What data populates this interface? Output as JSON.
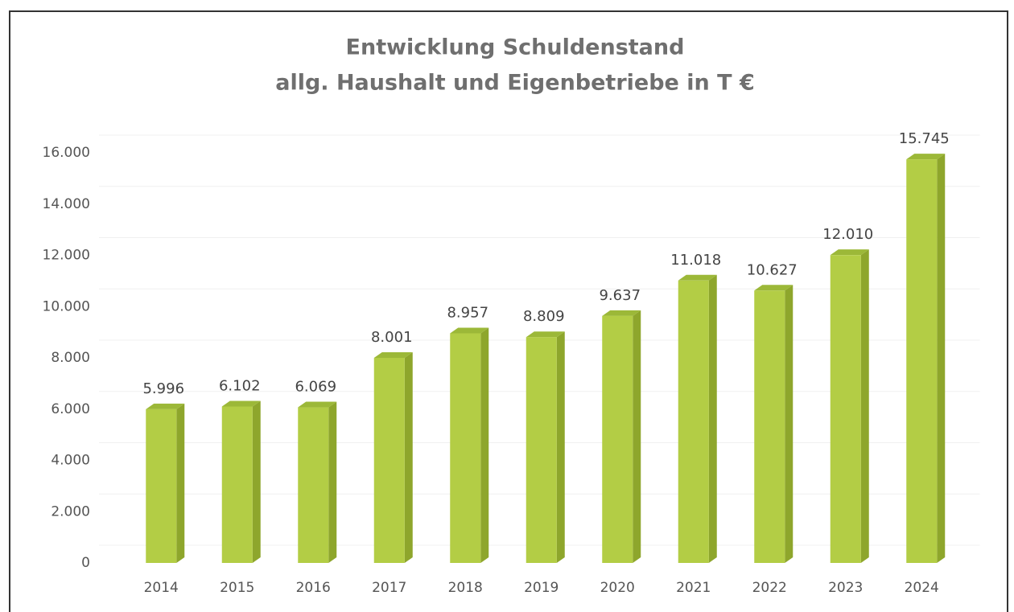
{
  "chart_data": {
    "type": "bar3d",
    "title": [
      "Entwicklung Schuldenstand",
      "allg. Haushalt und Eigenbetriebe in T €"
    ],
    "categories": [
      "2014",
      "2015",
      "2016",
      "2017",
      "2018",
      "2019",
      "2020",
      "2021",
      "2022",
      "2023",
      "2024"
    ],
    "values": [
      5996,
      6102,
      6069,
      8001,
      8957,
      8809,
      9637,
      11018,
      10627,
      12010,
      15745
    ],
    "value_labels": [
      "5.996",
      "6.102",
      "6.069",
      "8.001",
      "8.957",
      "8.809",
      "9.637",
      "11.018",
      "10.627",
      "12.010",
      "15.745"
    ],
    "color": "#b3cd45",
    "ylim": [
      0,
      16000
    ],
    "yticks": [
      0,
      {
        "value": 2000,
        "label": "2.000"
      },
      {
        "value": 4000,
        "label": "4.000"
      },
      {
        "value": 6000,
        "label": "6.000"
      },
      {
        "value": 8000,
        "label": "8.000"
      },
      {
        "value": 10000,
        "label": "10.000"
      },
      {
        "value": 12000,
        "label": "12.000"
      },
      {
        "value": 14000,
        "label": "14.000"
      },
      {
        "value": 16000,
        "label": "16.000"
      }
    ],
    "grid": true
  }
}
